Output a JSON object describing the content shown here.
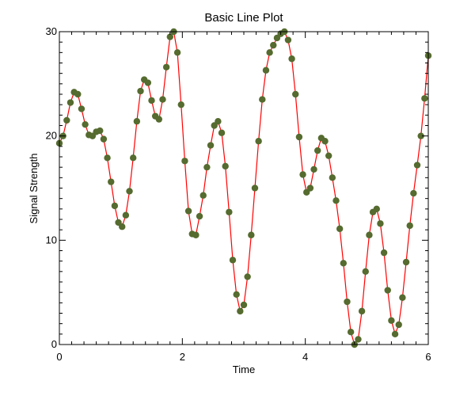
{
  "chart_data": {
    "type": "line",
    "title": "Basic Line Plot",
    "xlabel": "Time",
    "ylabel": "Signal Strength",
    "xlim": [
      0,
      6
    ],
    "ylim": [
      0,
      30
    ],
    "x_ticks": [
      "0",
      "2",
      "4",
      "6"
    ],
    "y_ticks": [
      "0",
      "10",
      "20",
      "30"
    ],
    "grid": false,
    "legend": "none",
    "line_color": "#ff0000",
    "marker_color": "#556b2f",
    "series": [
      {
        "x": [
          0.0,
          0.06,
          0.12,
          0.18,
          0.24,
          0.3,
          0.36,
          0.42,
          0.48,
          0.54,
          0.6,
          0.66,
          0.72,
          0.78,
          0.84,
          0.9,
          0.96,
          1.02,
          1.08,
          1.14,
          1.2,
          1.26,
          1.32,
          1.38,
          1.44,
          1.5,
          1.56,
          1.62,
          1.68,
          1.74,
          1.8,
          1.86,
          1.92,
          1.98,
          2.04,
          2.1,
          2.16,
          2.22,
          2.28,
          2.34,
          2.4,
          2.46,
          2.52,
          2.58,
          2.64,
          2.7,
          2.76,
          2.82,
          2.88,
          2.94,
          3.0,
          3.06,
          3.12,
          3.18,
          3.24,
          3.3,
          3.36,
          3.42,
          3.48,
          3.54,
          3.6,
          3.66,
          3.72,
          3.78,
          3.84,
          3.9,
          3.96,
          4.02,
          4.08,
          4.14,
          4.2,
          4.26,
          4.32,
          4.38,
          4.44,
          4.5,
          4.56,
          4.62,
          4.68,
          4.74,
          4.8,
          4.86,
          4.92,
          4.98,
          5.04,
          5.1,
          5.16,
          5.22,
          5.28,
          5.34,
          5.4,
          5.46,
          5.52,
          5.58,
          5.64,
          5.7,
          5.76,
          5.82,
          5.88,
          5.94,
          6.0
        ],
        "values": [
          19.3,
          20.0,
          21.5,
          23.2,
          24.2,
          24.0,
          22.6,
          21.1,
          20.1,
          20.0,
          20.4,
          20.5,
          19.7,
          17.9,
          15.6,
          13.3,
          11.7,
          11.3,
          12.4,
          14.7,
          17.9,
          21.4,
          24.3,
          25.4,
          25.1,
          23.4,
          21.9,
          21.6,
          23.5,
          26.6,
          29.5,
          30.0,
          28.0,
          23.0,
          17.6,
          12.8,
          10.6,
          10.5,
          12.3,
          14.3,
          17.0,
          19.1,
          21.0,
          21.4,
          20.3,
          17.1,
          12.7,
          8.1,
          4.8,
          3.2,
          3.8,
          6.5,
          10.5,
          15.0,
          19.5,
          23.5,
          26.3,
          28.0,
          28.7,
          29.4,
          29.8,
          30.0,
          29.2,
          27.4,
          24.0,
          19.9,
          16.3,
          14.6,
          15.0,
          16.8,
          18.6,
          19.8,
          19.5,
          18.1,
          16.0,
          13.8,
          11.1,
          7.8,
          4.1,
          1.2,
          0.0,
          0.5,
          3.2,
          7.0,
          10.5,
          12.7,
          13.0,
          11.6,
          8.8,
          5.2,
          2.3,
          1.0,
          1.9,
          4.5,
          7.9,
          11.4,
          14.5,
          17.2,
          20.0,
          23.6,
          27.7
        ]
      }
    ]
  }
}
